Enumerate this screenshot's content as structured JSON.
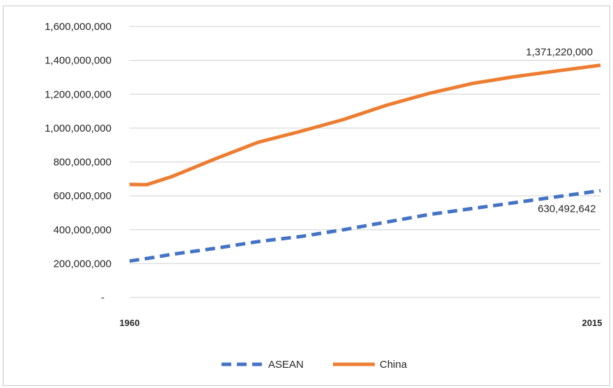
{
  "chart_data": {
    "type": "line",
    "x": [
      1960,
      1962,
      1965,
      1970,
      1975,
      1980,
      1985,
      1990,
      1995,
      2000,
      2005,
      2010,
      2015
    ],
    "x_tick_labels": [
      "1960",
      "2015"
    ],
    "y_tick_labels": [
      "1,600,000,000",
      "1,400,000,000",
      "1,200,000,000",
      "1,000,000,000",
      "800,000,000",
      "600,000,000",
      "400,000,000",
      "200,000,000",
      "-"
    ],
    "ylim": [
      0,
      1600000000
    ],
    "grid": true,
    "legend_position": "bottom",
    "series": [
      {
        "name": "ASEAN",
        "color": "#4472c4",
        "style": "dashed",
        "values": [
          215000000,
          230000000,
          255000000,
          290000000,
          330000000,
          360000000,
          400000000,
          445000000,
          490000000,
          525000000,
          560000000,
          595000000,
          630492642
        ]
      },
      {
        "name": "China",
        "color": "#ed7d31",
        "style": "solid",
        "values": [
          667000000,
          666000000,
          715000000,
          818000000,
          916000000,
          981000000,
          1051000000,
          1135000000,
          1205000000,
          1263000000,
          1304000000,
          1338000000,
          1371220000
        ]
      }
    ],
    "data_labels": [
      {
        "series": "China",
        "text": "1,371,220,000"
      },
      {
        "series": "ASEAN",
        "text": "630,492,642"
      }
    ]
  }
}
